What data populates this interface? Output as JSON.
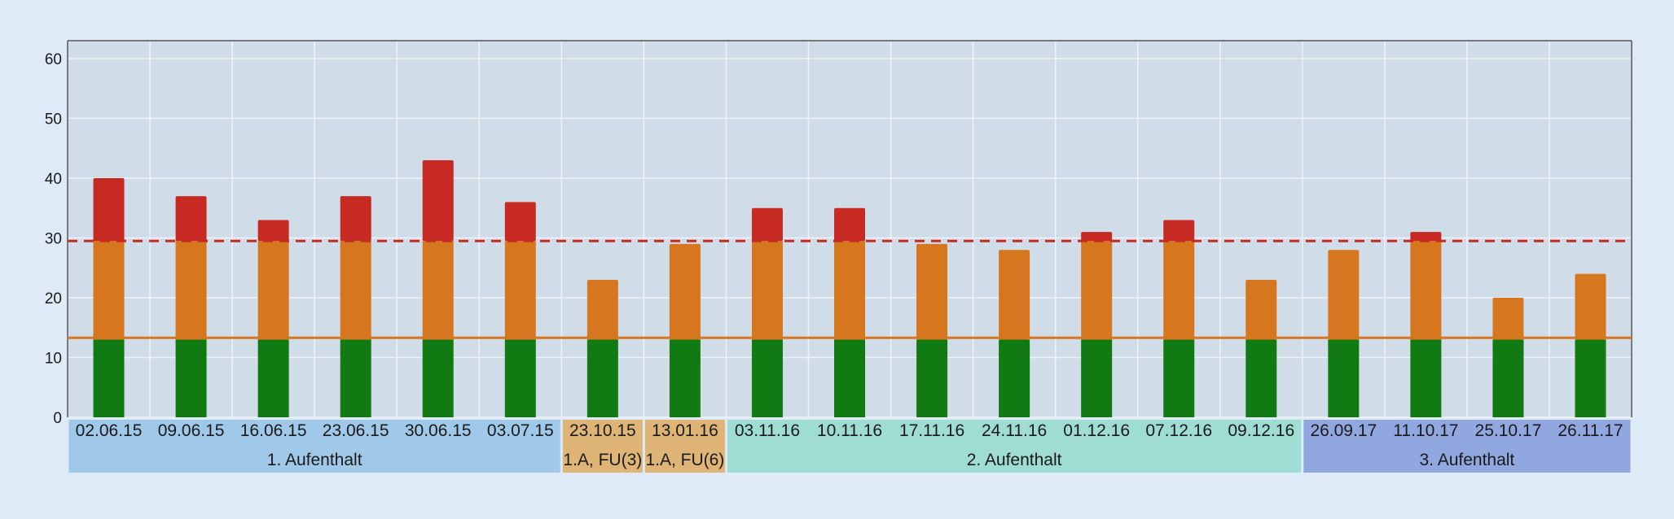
{
  "chart_data": {
    "type": "bar",
    "stacked": true,
    "categories": [
      "02.06.15",
      "09.06.15",
      "16.06.15",
      "23.06.15",
      "30.06.15",
      "03.07.15",
      "23.10.15",
      "13.01.16",
      "03.11.16",
      "10.11.16",
      "17.11.16",
      "24.11.16",
      "01.12.16",
      "07.12.16",
      "09.12.16",
      "26.09.17",
      "11.10.17",
      "25.10.17",
      "26.11.17"
    ],
    "totals": [
      40,
      37,
      33,
      37,
      43,
      36,
      23,
      29,
      35,
      35,
      29,
      28,
      31,
      33,
      23,
      28,
      31,
      20,
      24
    ],
    "segments": [
      {
        "upper": 13,
        "color": "#127a12"
      },
      {
        "upper": 29.5,
        "color": "#d6771f"
      },
      {
        "upper": null,
        "color": "#c62a22"
      }
    ],
    "reference_lines": [
      {
        "value": 29.5,
        "color": "#c62a22",
        "style": "dashed"
      },
      {
        "value": 13.3,
        "color": "#d6771f",
        "style": "solid"
      }
    ],
    "ylim": [
      0,
      63
    ],
    "yticks": [
      0,
      10,
      20,
      30,
      40,
      50,
      60
    ],
    "grid": true,
    "groups": [
      {
        "label": "1. Aufenthalt",
        "start": 0,
        "end": 5,
        "color": "#a0c8e8"
      },
      {
        "label": "1.A, FU(3)",
        "start": 6,
        "end": 6,
        "color": "#dfb477"
      },
      {
        "label": "1.A, FU(6)",
        "start": 7,
        "end": 7,
        "color": "#dfb477"
      },
      {
        "label": "2. Aufenthalt",
        "start": 8,
        "end": 14,
        "color": "#9fdcd4"
      },
      {
        "label": "3. Aufenthalt",
        "start": 15,
        "end": 18,
        "color": "#91a7e0"
      }
    ]
  }
}
